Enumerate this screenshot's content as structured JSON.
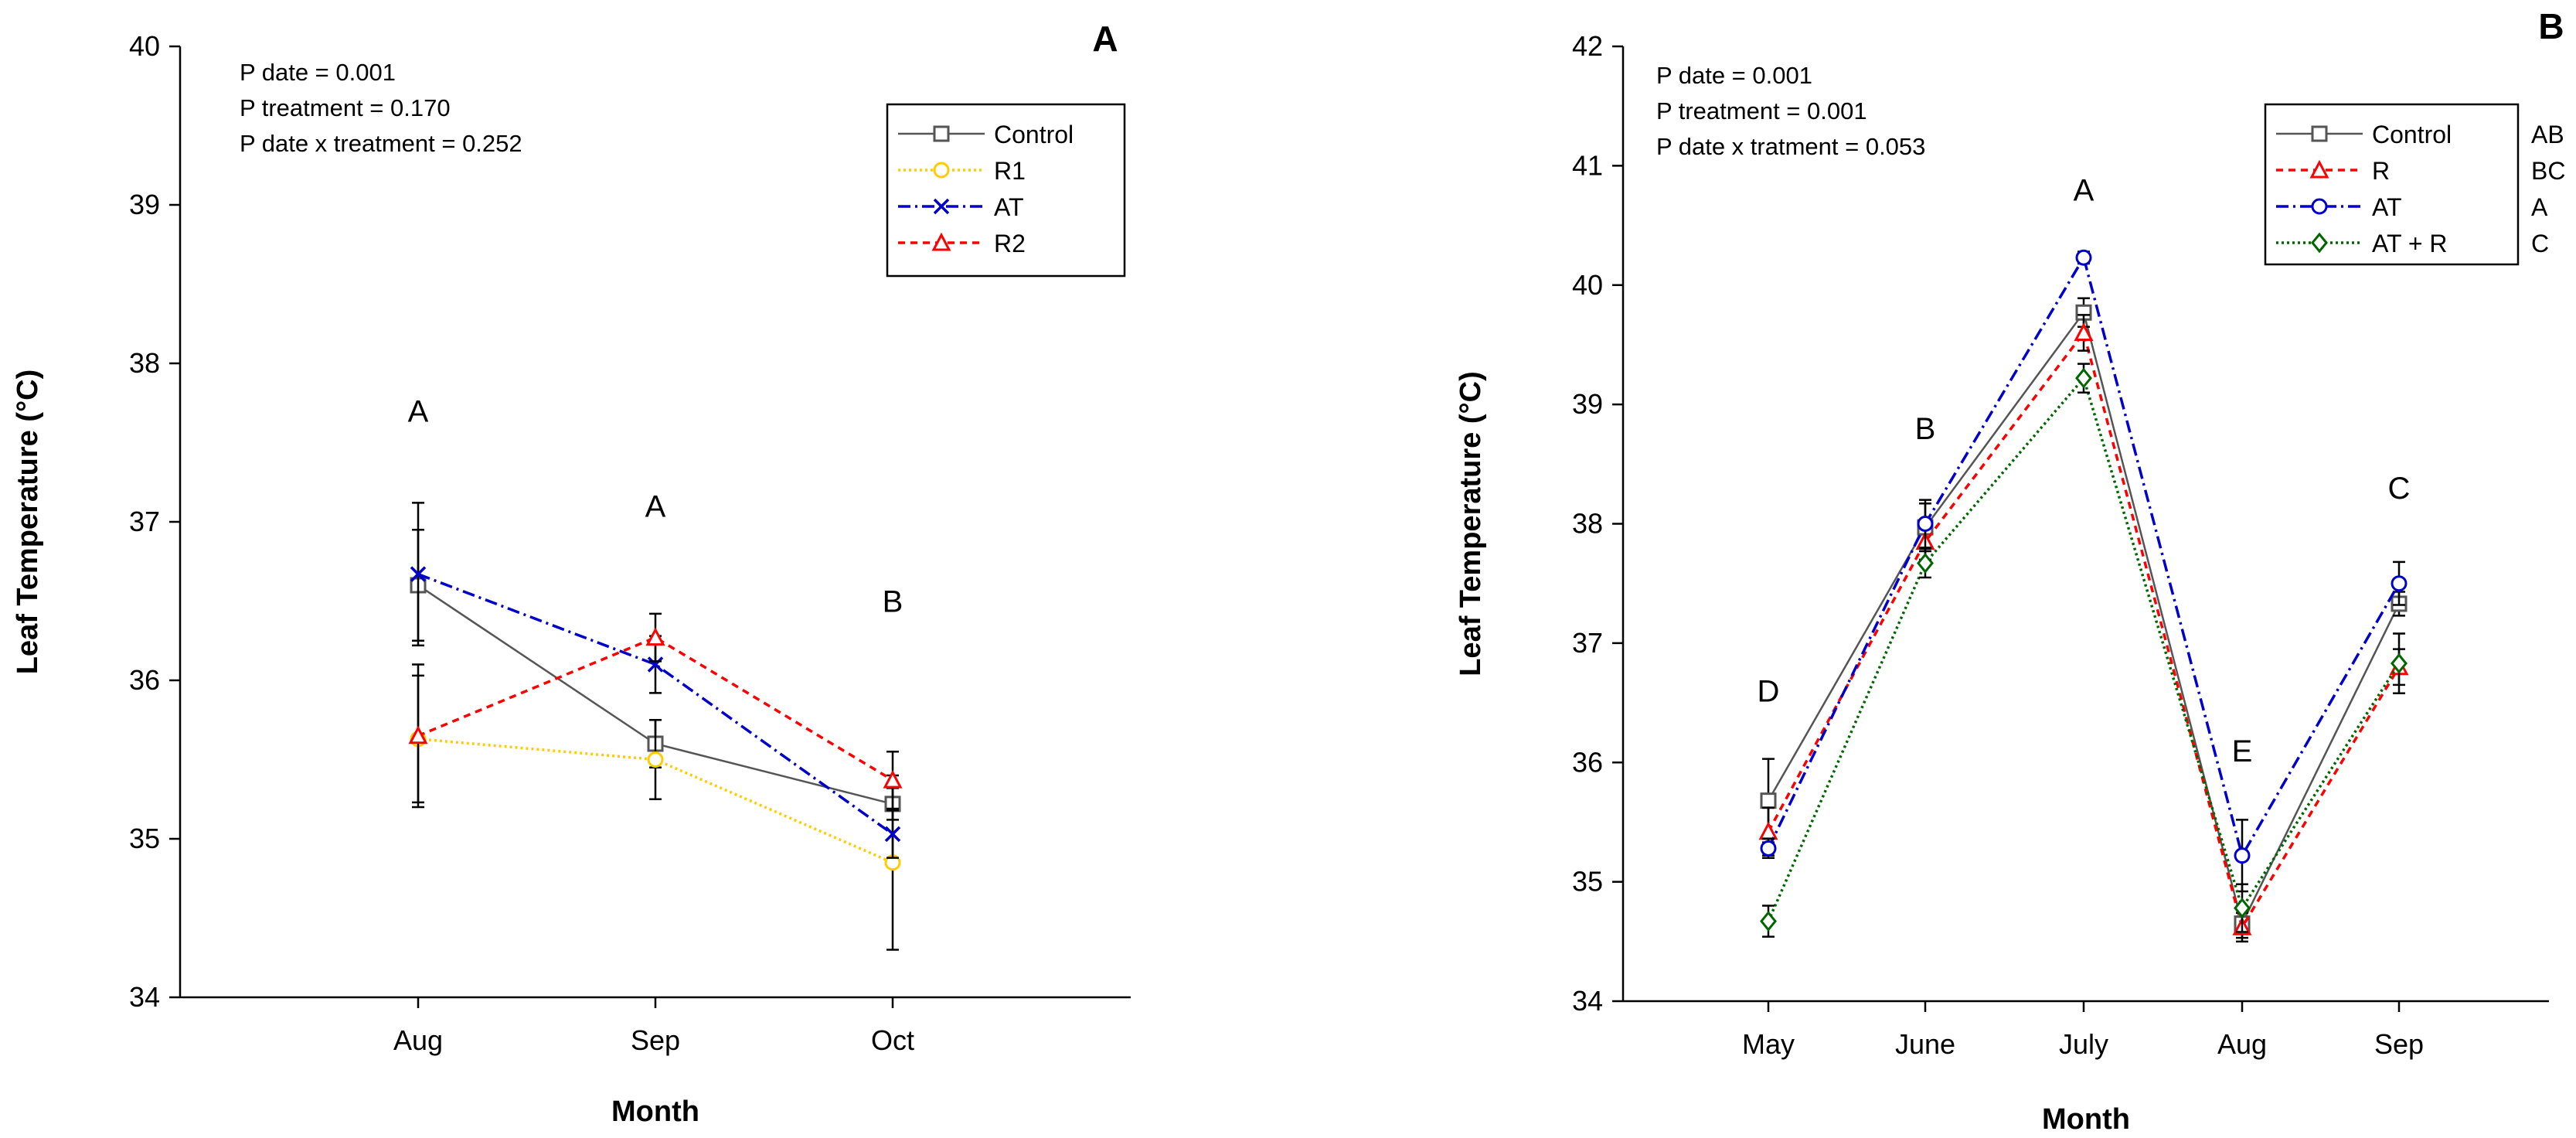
{
  "chart_data": [
    {
      "panel_label": "A",
      "type": "line",
      "xlabel": "Month",
      "ylabel": "Leaf Temperature (°C)",
      "ylim": [
        34,
        40
      ],
      "yticks": [
        "34",
        "35",
        "36",
        "37",
        "38",
        "39",
        "40"
      ],
      "categories": [
        "Aug",
        "Sep",
        "Oct"
      ],
      "stats": [
        "P date = 0.001",
        "P treatment = 0.170",
        "P date x treatment = 0.252"
      ],
      "letters": [
        "A",
        "A",
        "B"
      ],
      "letter_values": [
        37.7,
        37.1,
        36.5
      ],
      "legend_position": "top-right",
      "series": [
        {
          "name": "Control",
          "values": [
            36.6,
            35.6,
            35.22
          ],
          "err": [
            0.35,
            0.15,
            0.1
          ],
          "color": "#555555",
          "marker": "square",
          "dash": ""
        },
        {
          "name": "R1",
          "values": [
            35.63,
            35.5,
            34.85
          ],
          "err": [
            0.4,
            0.25,
            0.55
          ],
          "color": "#ffcc00",
          "marker": "circle",
          "dash": "3,4"
        },
        {
          "name": "AT",
          "values": [
            36.67,
            36.1,
            35.03
          ],
          "err": [
            0.45,
            0.18,
            0.15
          ],
          "color": "#0000cc",
          "marker": "x",
          "dash": "16,6,3,6"
        },
        {
          "name": "R2",
          "values": [
            35.65,
            36.27,
            35.37
          ],
          "err": [
            0.45,
            0.15,
            0.18
          ],
          "color": "#ff0000",
          "marker": "triangle",
          "dash": "9,7"
        }
      ]
    },
    {
      "panel_label": "B",
      "type": "line",
      "xlabel": "Month",
      "ylabel": "Leaf Temperature (°C)",
      "ylim": [
        34,
        42
      ],
      "yticks": [
        "34",
        "35",
        "36",
        "37",
        "38",
        "39",
        "40",
        "41",
        "42"
      ],
      "categories": [
        "May",
        "June",
        "July",
        "Aug",
        "Sep"
      ],
      "stats": [
        "P date = 0.001",
        "P treatment = 0.001",
        "P date x tratment = 0.053"
      ],
      "letters": [
        "D",
        "B",
        "A",
        "E",
        "C"
      ],
      "letter_values": [
        36.6,
        38.8,
        40.8,
        36.1,
        38.3
      ],
      "legend_position": "top-right",
      "series": [
        {
          "name": "Control",
          "group": "AB",
          "values": [
            35.68,
            37.97,
            39.77,
            34.65,
            37.33
          ],
          "err": [
            0.35,
            0.2,
            0.12,
            0.12,
            0.1
          ],
          "color": "#555555",
          "marker": "square",
          "dash": ""
        },
        {
          "name": "R",
          "group": "BC",
          "values": [
            35.42,
            37.85,
            39.6,
            34.62,
            36.8
          ],
          "err": [
            0.2,
            0.15,
            0.15,
            0.12,
            0.15
          ],
          "color": "#ff0000",
          "marker": "triangle",
          "dash": "9,7"
        },
        {
          "name": "AT",
          "group": "A",
          "values": [
            35.28,
            38.0,
            40.23,
            35.22,
            37.5
          ],
          "err": [
            0.08,
            0.2,
            0.05,
            0.3,
            0.18
          ],
          "color": "#0000cc",
          "marker": "circle",
          "dash": "16,6,3,6"
        },
        {
          "name": "AT + R",
          "group": "C",
          "values": [
            34.67,
            37.67,
            39.22,
            34.78,
            36.83
          ],
          "err": [
            0.13,
            0.12,
            0.12,
            0.2,
            0.25
          ],
          "color": "#006600",
          "marker": "diamond",
          "dash": "3,4"
        }
      ]
    }
  ]
}
